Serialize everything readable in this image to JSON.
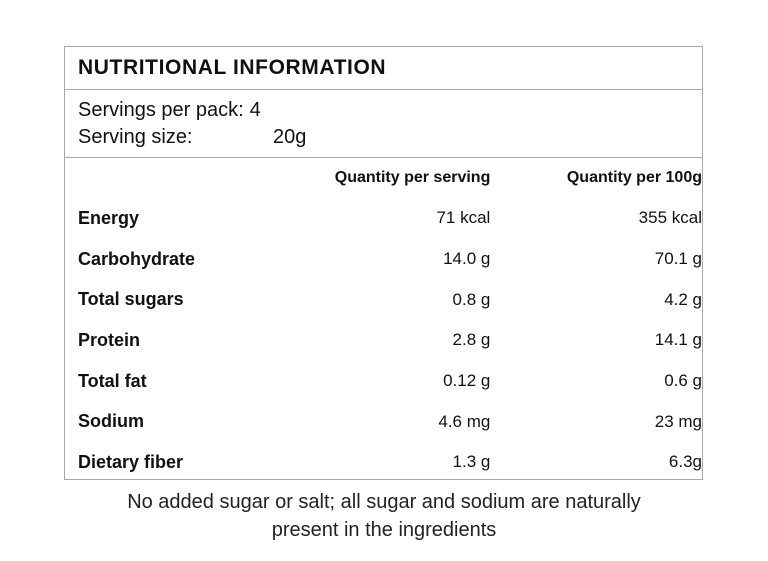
{
  "title": "NUTRITIONAL INFORMATION",
  "servings": {
    "per_pack_label": "Servings per pack:",
    "per_pack_value": "4",
    "size_label": "Serving size:",
    "size_value": "20g"
  },
  "table": {
    "headers": {
      "name": "",
      "per_serving": "Quantity per serving",
      "per_100g": "Quantity per 100g"
    },
    "rows": [
      {
        "name": "Energy",
        "per_serving": "71 kcal",
        "per_100g": "355 kcal"
      },
      {
        "name": "Carbohydrate",
        "per_serving": "14.0 g",
        "per_100g": "70.1 g"
      },
      {
        "name": "Total sugars",
        "per_serving": "0.8 g",
        "per_100g": "4.2 g"
      },
      {
        "name": "Protein",
        "per_serving": "2.8 g",
        "per_100g": "14.1 g"
      },
      {
        "name": "Total fat",
        "per_serving": "0.12 g",
        "per_100g": "0.6 g"
      },
      {
        "name": "Sodium",
        "per_serving": "4.6 mg",
        "per_100g": "23 mg"
      },
      {
        "name": "Dietary fiber",
        "per_serving": "1.3 g",
        "per_100g": "6.3g"
      }
    ]
  },
  "footnote": {
    "line1": "No added sugar or salt; all sugar and sodium are naturally",
    "line2": "present in the ingredients"
  }
}
